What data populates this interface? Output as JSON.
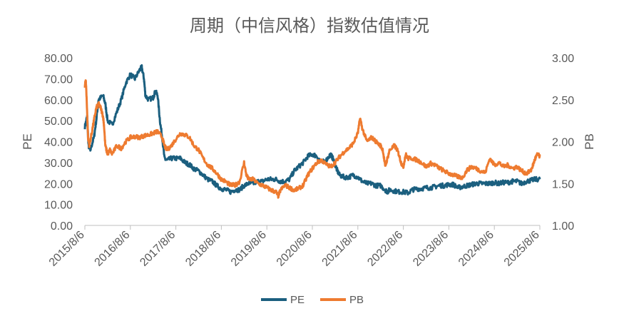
{
  "chart_data": {
    "type": "line",
    "title": "周期（中信风格）指数估值情况",
    "ylabel_left": "PE",
    "ylabel_right": "PB",
    "ylim_left": [
      0,
      80
    ],
    "ylim_right": [
      1.0,
      3.0
    ],
    "y_ticks_left": [
      "0.00",
      "10.00",
      "20.00",
      "30.00",
      "40.00",
      "50.00",
      "60.00",
      "70.00",
      "80.00"
    ],
    "y_ticks_right": [
      "1.00",
      "1.50",
      "2.00",
      "2.50",
      "3.00"
    ],
    "x_range": [
      "2015/8/6",
      "2025/8/6"
    ],
    "x_ticks": [
      "2015/8/6",
      "2016/8/6",
      "2017/8/6",
      "2018/8/6",
      "2019/8/6",
      "2020/8/6",
      "2021/8/6",
      "2022/8/6",
      "2023/8/6",
      "2024/8/6",
      "2025/8/6"
    ],
    "legend": {
      "position": "bottom",
      "entries": [
        "PE",
        "PB"
      ]
    },
    "grid": false,
    "colors": {
      "PE": "#1b5f7f",
      "PB": "#ee7b30"
    },
    "series": [
      {
        "name": "PE",
        "axis": "left",
        "points": [
          [
            0.0,
            47
          ],
          [
            0.05,
            52
          ],
          [
            0.08,
            38
          ],
          [
            0.12,
            36
          ],
          [
            0.2,
            42
          ],
          [
            0.25,
            50
          ],
          [
            0.3,
            60
          ],
          [
            0.4,
            62
          ],
          [
            0.45,
            58
          ],
          [
            0.5,
            50
          ],
          [
            0.6,
            48
          ],
          [
            0.7,
            54
          ],
          [
            0.8,
            60
          ],
          [
            0.9,
            68
          ],
          [
            1.0,
            72
          ],
          [
            1.1,
            70
          ],
          [
            1.2,
            74
          ],
          [
            1.25,
            75.5
          ],
          [
            1.3,
            70
          ],
          [
            1.33,
            62
          ],
          [
            1.4,
            60
          ],
          [
            1.5,
            61
          ],
          [
            1.55,
            64
          ],
          [
            1.6,
            62
          ],
          [
            1.65,
            50
          ],
          [
            1.7,
            42
          ],
          [
            1.75,
            32
          ],
          [
            1.8,
            31
          ],
          [
            1.9,
            32
          ],
          [
            2.0,
            32
          ],
          [
            2.1,
            32
          ],
          [
            2.2,
            30
          ],
          [
            2.3,
            29
          ],
          [
            2.4,
            27
          ],
          [
            2.5,
            26
          ],
          [
            2.6,
            24
          ],
          [
            2.7,
            22
          ],
          [
            2.8,
            21
          ],
          [
            2.9,
            19
          ],
          [
            3.0,
            17.5
          ],
          [
            3.1,
            17
          ],
          [
            3.2,
            16
          ],
          [
            3.3,
            17
          ],
          [
            3.4,
            17
          ],
          [
            3.5,
            19
          ],
          [
            3.6,
            20
          ],
          [
            3.7,
            20
          ],
          [
            3.8,
            21
          ],
          [
            3.9,
            21
          ],
          [
            4.0,
            22
          ],
          [
            4.1,
            22
          ],
          [
            4.2,
            22
          ],
          [
            4.3,
            21
          ],
          [
            4.4,
            21
          ],
          [
            4.5,
            22
          ],
          [
            4.6,
            26
          ],
          [
            4.7,
            28
          ],
          [
            4.8,
            30
          ],
          [
            4.9,
            33
          ],
          [
            5.0,
            34
          ],
          [
            5.1,
            33
          ],
          [
            5.2,
            30
          ],
          [
            5.3,
            31
          ],
          [
            5.4,
            34
          ],
          [
            5.45,
            32
          ],
          [
            5.5,
            29
          ],
          [
            5.55,
            26
          ],
          [
            5.6,
            24
          ],
          [
            5.7,
            23
          ],
          [
            5.8,
            23
          ],
          [
            5.9,
            24
          ],
          [
            6.0,
            23
          ],
          [
            6.1,
            21
          ],
          [
            6.2,
            20
          ],
          [
            6.3,
            20
          ],
          [
            6.4,
            19
          ],
          [
            6.5,
            19
          ],
          [
            6.6,
            17
          ],
          [
            6.65,
            16
          ],
          [
            6.7,
            17
          ],
          [
            6.8,
            16.5
          ],
          [
            6.9,
            16
          ],
          [
            7.0,
            16
          ],
          [
            7.1,
            15.5
          ],
          [
            7.2,
            17
          ],
          [
            7.3,
            17.5
          ],
          [
            7.4,
            17.5
          ],
          [
            7.5,
            18
          ],
          [
            7.6,
            18
          ],
          [
            7.7,
            18.5
          ],
          [
            7.8,
            19
          ],
          [
            7.9,
            19
          ],
          [
            8.0,
            19.5
          ],
          [
            8.1,
            19.5
          ],
          [
            8.2,
            18
          ],
          [
            8.3,
            18.5
          ],
          [
            8.4,
            19
          ],
          [
            8.5,
            19.5
          ],
          [
            8.6,
            20
          ],
          [
            8.7,
            20
          ],
          [
            8.8,
            20
          ],
          [
            8.9,
            20
          ],
          [
            9.0,
            20.5
          ],
          [
            9.1,
            20
          ],
          [
            9.2,
            20.5
          ],
          [
            9.3,
            20.5
          ],
          [
            9.4,
            21
          ],
          [
            9.5,
            21
          ],
          [
            9.6,
            20
          ],
          [
            9.7,
            21
          ],
          [
            9.8,
            21.5
          ],
          [
            9.9,
            22
          ],
          [
            10.0,
            22
          ]
        ]
      },
      {
        "name": "PB",
        "axis": "right",
        "points": [
          [
            0.0,
            2.65
          ],
          [
            0.02,
            2.75
          ],
          [
            0.04,
            2.5
          ],
          [
            0.07,
            2.05
          ],
          [
            0.1,
            1.95
          ],
          [
            0.15,
            2.1
          ],
          [
            0.2,
            2.25
          ],
          [
            0.25,
            2.4
          ],
          [
            0.3,
            2.45
          ],
          [
            0.35,
            2.4
          ],
          [
            0.4,
            2.3
          ],
          [
            0.42,
            2.2
          ],
          [
            0.45,
            1.95
          ],
          [
            0.5,
            1.85
          ],
          [
            0.55,
            1.9
          ],
          [
            0.6,
            1.85
          ],
          [
            0.7,
            1.95
          ],
          [
            0.8,
            1.92
          ],
          [
            0.9,
            2.0
          ],
          [
            1.0,
            2.05
          ],
          [
            1.1,
            2.06
          ],
          [
            1.2,
            2.05
          ],
          [
            1.3,
            2.07
          ],
          [
            1.4,
            2.08
          ],
          [
            1.5,
            2.1
          ],
          [
            1.6,
            2.12
          ],
          [
            1.7,
            2.05
          ],
          [
            1.75,
            1.95
          ],
          [
            1.8,
            1.9
          ],
          [
            1.9,
            1.95
          ],
          [
            2.0,
            2.03
          ],
          [
            2.1,
            2.1
          ],
          [
            2.2,
            2.08
          ],
          [
            2.3,
            2.05
          ],
          [
            2.4,
            1.95
          ],
          [
            2.5,
            1.9
          ],
          [
            2.6,
            1.8
          ],
          [
            2.7,
            1.72
          ],
          [
            2.8,
            1.68
          ],
          [
            2.9,
            1.62
          ],
          [
            3.0,
            1.55
          ],
          [
            3.1,
            1.52
          ],
          [
            3.2,
            1.48
          ],
          [
            3.3,
            1.48
          ],
          [
            3.4,
            1.52
          ],
          [
            3.5,
            1.75
          ],
          [
            3.55,
            1.6
          ],
          [
            3.6,
            1.55
          ],
          [
            3.7,
            1.55
          ],
          [
            3.8,
            1.5
          ],
          [
            3.9,
            1.48
          ],
          [
            4.0,
            1.45
          ],
          [
            4.1,
            1.42
          ],
          [
            4.2,
            1.4
          ],
          [
            4.25,
            1.35
          ],
          [
            4.3,
            1.42
          ],
          [
            4.4,
            1.48
          ],
          [
            4.5,
            1.45
          ],
          [
            4.6,
            1.42
          ],
          [
            4.7,
            1.44
          ],
          [
            4.8,
            1.48
          ],
          [
            4.9,
            1.6
          ],
          [
            5.0,
            1.68
          ],
          [
            5.1,
            1.75
          ],
          [
            5.2,
            1.78
          ],
          [
            5.3,
            1.73
          ],
          [
            5.4,
            1.7
          ],
          [
            5.5,
            1.75
          ],
          [
            5.6,
            1.82
          ],
          [
            5.7,
            1.88
          ],
          [
            5.8,
            1.92
          ],
          [
            5.9,
            1.98
          ],
          [
            6.0,
            2.1
          ],
          [
            6.05,
            2.28
          ],
          [
            6.1,
            2.15
          ],
          [
            6.2,
            2.0
          ],
          [
            6.3,
            2.05
          ],
          [
            6.4,
            2.0
          ],
          [
            6.5,
            1.95
          ],
          [
            6.55,
            1.9
          ],
          [
            6.6,
            1.7
          ],
          [
            6.65,
            1.8
          ],
          [
            6.7,
            1.9
          ],
          [
            6.8,
            1.95
          ],
          [
            6.85,
            1.92
          ],
          [
            6.9,
            1.85
          ],
          [
            6.95,
            1.75
          ],
          [
            7.0,
            1.7
          ],
          [
            7.05,
            1.85
          ],
          [
            7.1,
            1.8
          ],
          [
            7.2,
            1.8
          ],
          [
            7.3,
            1.78
          ],
          [
            7.4,
            1.75
          ],
          [
            7.5,
            1.7
          ],
          [
            7.6,
            1.74
          ],
          [
            7.7,
            1.72
          ],
          [
            7.8,
            1.68
          ],
          [
            7.9,
            1.65
          ],
          [
            8.0,
            1.62
          ],
          [
            8.1,
            1.6
          ],
          [
            8.2,
            1.58
          ],
          [
            8.3,
            1.57
          ],
          [
            8.4,
            1.66
          ],
          [
            8.5,
            1.7
          ],
          [
            8.6,
            1.68
          ],
          [
            8.7,
            1.65
          ],
          [
            8.8,
            1.63
          ],
          [
            8.9,
            1.8
          ],
          [
            9.0,
            1.72
          ],
          [
            9.1,
            1.75
          ],
          [
            9.2,
            1.7
          ],
          [
            9.3,
            1.72
          ],
          [
            9.4,
            1.68
          ],
          [
            9.5,
            1.7
          ],
          [
            9.6,
            1.65
          ],
          [
            9.7,
            1.62
          ],
          [
            9.8,
            1.65
          ],
          [
            9.85,
            1.72
          ],
          [
            9.9,
            1.8
          ],
          [
            9.95,
            1.85
          ],
          [
            10.0,
            1.82
          ]
        ]
      }
    ]
  }
}
